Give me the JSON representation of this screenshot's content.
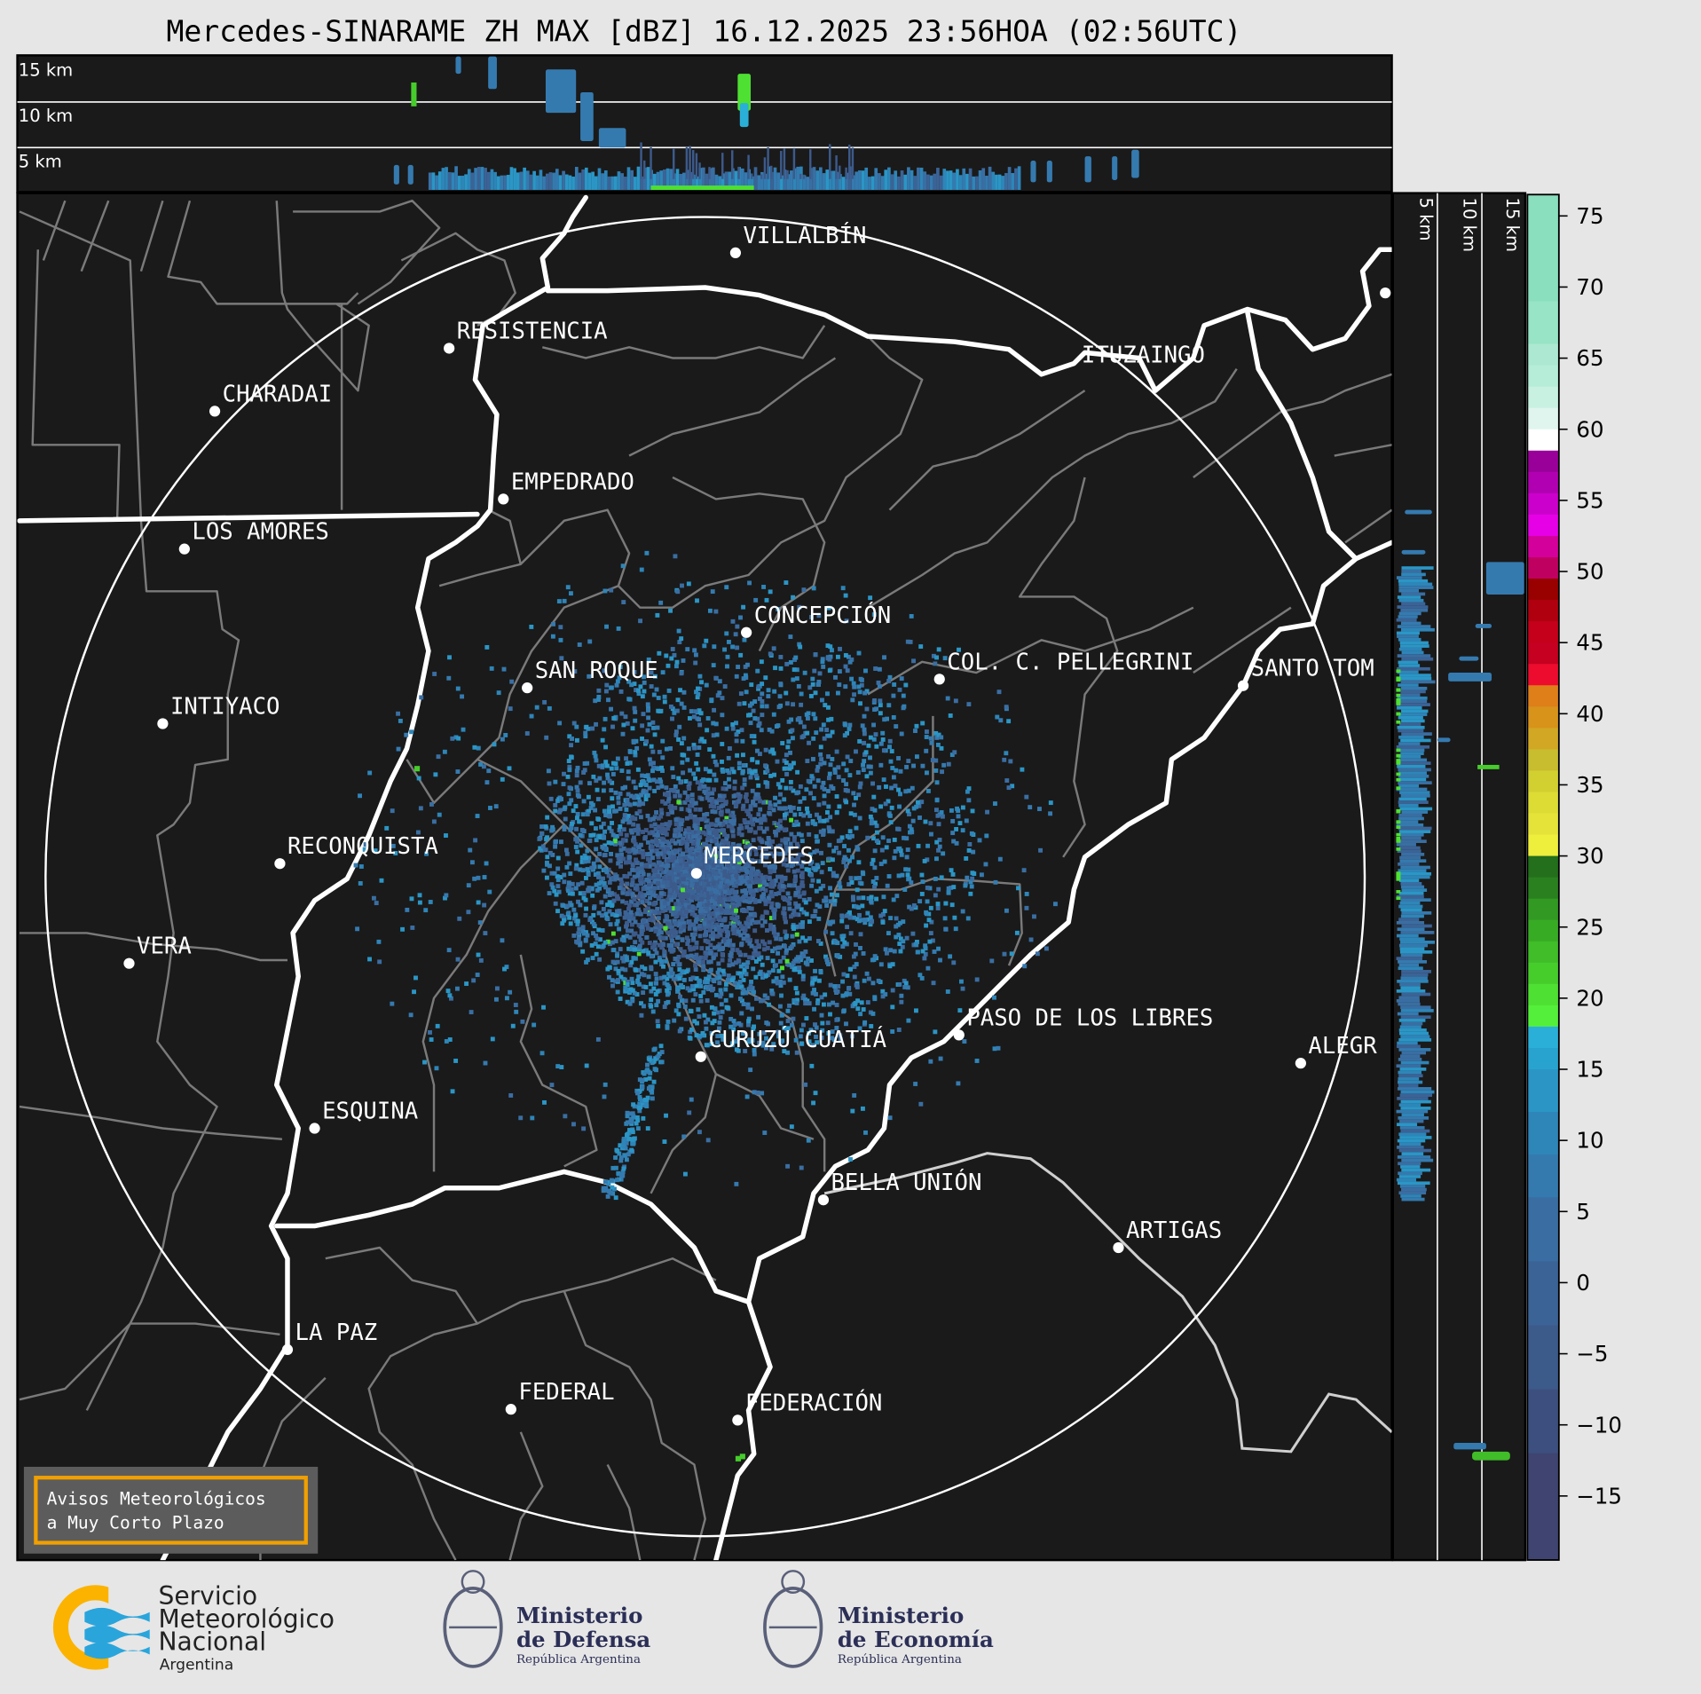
{
  "title": "Mercedes-SINARAME ZH MAX [dBZ] 16.12.2025 23:56HOA (02:56UTC)",
  "top_panel": {
    "height_labels": [
      "15 km",
      "10 km",
      "5 km"
    ]
  },
  "right_panel": {
    "height_labels": [
      "5 km",
      "10 km",
      "15 km"
    ]
  },
  "map": {
    "radar_site": "MERCEDES",
    "cities": [
      "VILLALBÍN",
      "RESISTENCIA",
      "CHARADAI",
      "EMPEDRADO",
      "LOS AMORES",
      "CONCEPCIÓN",
      "SAN ROQUE",
      "COL. C. PELLEGRINI",
      "SANTO TOM",
      "INTIYACO",
      "ITUZAINGÓ",
      "MERCEDES",
      "RECONQUISTA",
      "VERA",
      "PASO DE LOS LIBRES",
      "CURUZÚ CUATIÁ",
      "ALEGR",
      "ESQUINA",
      "BELLA UNIÓN",
      "ARTIGAS",
      "LA PAZ",
      "FEDERAL",
      "FEDERACIÓN"
    ],
    "colors": {
      "background": "#1a1a1a",
      "borders": "#7a7a7a",
      "rivers": "#ffffff",
      "echo_weak": "#3a6ea2",
      "echo_moderate": "#4ee032"
    }
  },
  "notice": {
    "line1": "Avisos Meteorológicos",
    "line2": "a Muy Corto Plazo",
    "border_color": "#f0a000"
  },
  "colorbar": {
    "unit": "dBZ",
    "range": [
      -19.5,
      76.5
    ],
    "ticks": [
      "75",
      "70",
      "65",
      "60",
      "55",
      "50",
      "45",
      "40",
      "35",
      "30",
      "25",
      "20",
      "15",
      "10",
      "5",
      "0",
      "−5",
      "−10",
      "−15"
    ],
    "tick_values": [
      75,
      70,
      65,
      60,
      55,
      50,
      45,
      40,
      35,
      30,
      25,
      20,
      15,
      10,
      5,
      0,
      -5,
      -10,
      -15
    ],
    "segments": [
      [
        69,
        76.5,
        "#8adfbe"
      ],
      [
        66,
        69,
        "#97e4c6"
      ],
      [
        64.5,
        66,
        "#ade9d2"
      ],
      [
        63,
        64.5,
        "#b6edd8"
      ],
      [
        61.5,
        63,
        "#c9f1e2"
      ],
      [
        60,
        61.5,
        "#e0f5ee"
      ],
      [
        58.5,
        60,
        "#ffffff"
      ],
      [
        57,
        58.5,
        "#990099"
      ],
      [
        55.5,
        57,
        "#b100b1"
      ],
      [
        54,
        55.5,
        "#cc00cc"
      ],
      [
        52.5,
        54,
        "#e600e6"
      ],
      [
        51,
        52.5,
        "#d4009b"
      ],
      [
        49.5,
        51,
        "#c00060"
      ],
      [
        48,
        49.5,
        "#990000"
      ],
      [
        46.5,
        48,
        "#b00010"
      ],
      [
        45,
        46.5,
        "#c4001b"
      ],
      [
        43.5,
        45,
        "#c50020"
      ],
      [
        42,
        43.5,
        "#ed0c2e"
      ],
      [
        40.5,
        42,
        "#de7f1a"
      ],
      [
        39,
        40.5,
        "#d8931b"
      ],
      [
        37.5,
        39,
        "#d2a723"
      ],
      [
        36,
        37.5,
        "#c8bd2e"
      ],
      [
        34.5,
        36,
        "#d2d030"
      ],
      [
        33,
        34.5,
        "#dcdc35"
      ],
      [
        31.5,
        33,
        "#e5e33a"
      ],
      [
        30,
        31.5,
        "#eeee3c"
      ],
      [
        28.5,
        30,
        "#236f1c"
      ],
      [
        27,
        28.5,
        "#2a801f"
      ],
      [
        25.5,
        27,
        "#329922"
      ],
      [
        24,
        25.5,
        "#38ab25"
      ],
      [
        22.5,
        24,
        "#40bd28"
      ],
      [
        21,
        22.5,
        "#46cd2c"
      ],
      [
        19.5,
        21,
        "#4ee032"
      ],
      [
        18,
        19.5,
        "#54ef3a"
      ],
      [
        16.5,
        18,
        "#2ab0d8"
      ],
      [
        15,
        16.5,
        "#28a3d0"
      ],
      [
        12,
        15,
        "#2b96c6"
      ],
      [
        9,
        12,
        "#2e85b8"
      ],
      [
        6,
        9,
        "#357aaf"
      ],
      [
        1.5,
        6,
        "#3a6ea2"
      ],
      [
        -3,
        1.5,
        "#3b6396"
      ],
      [
        -7.5,
        -3,
        "#3c5a8a"
      ],
      [
        -12,
        -7.5,
        "#3d4f7e"
      ],
      [
        -19.5,
        -12,
        "#3f4470"
      ]
    ]
  },
  "logos": {
    "smn": {
      "line1": "Servicio",
      "line2": "Meteorológico",
      "line3": "Nacional",
      "line4": "Argentina"
    },
    "defensa": {
      "line1": "Ministerio",
      "line2": "de Defensa",
      "line3": "República Argentina"
    },
    "economia": {
      "line1": "Ministerio",
      "line2": "de Economía",
      "line3": "República Argentina"
    }
  }
}
